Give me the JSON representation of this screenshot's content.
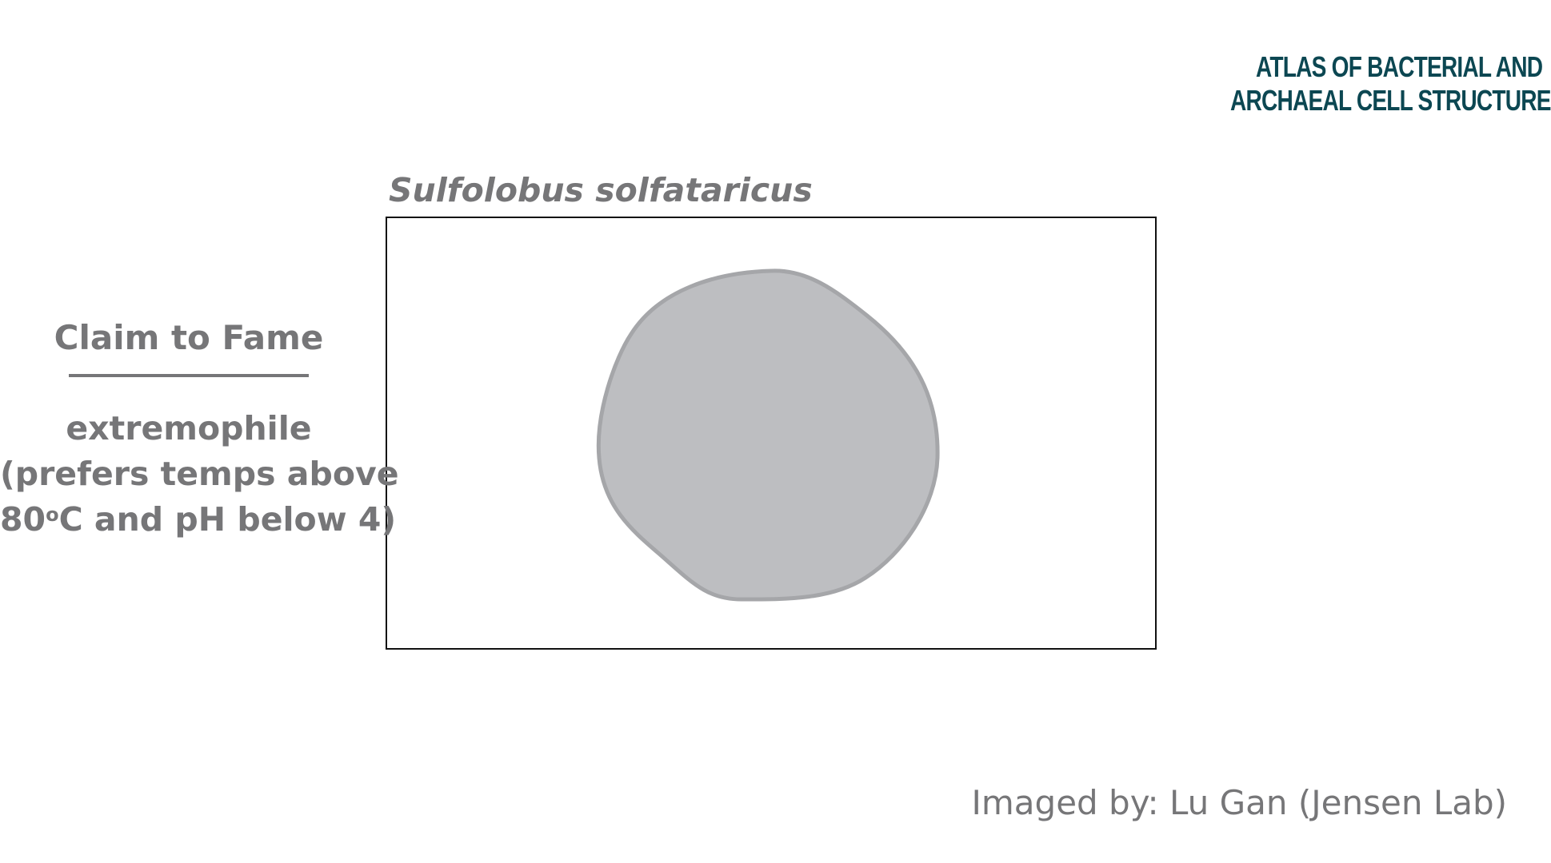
{
  "logo": {
    "line1": "ATLAS OF BACTERIAL AND",
    "line2": "ARCHAEAL CELL STRUCTURE",
    "color": "#0c4752"
  },
  "organism": {
    "name": "Sulfolobus solfataricus"
  },
  "claim_to_fame": {
    "heading": "Claim to Fame",
    "line1": "extremophile",
    "line2": "(prefers temps above",
    "line3_prefix": "80",
    "line3_degree": "o",
    "line3_suffix": "C and pH below 4)"
  },
  "credit": {
    "text": "Imaged by: Lu Gan (Jensen Lab)"
  },
  "colors": {
    "text_gray": "#767678",
    "cell_fill": "#bdbec1",
    "cell_outline": "#a5a6a9",
    "frame_border": "#111111"
  }
}
